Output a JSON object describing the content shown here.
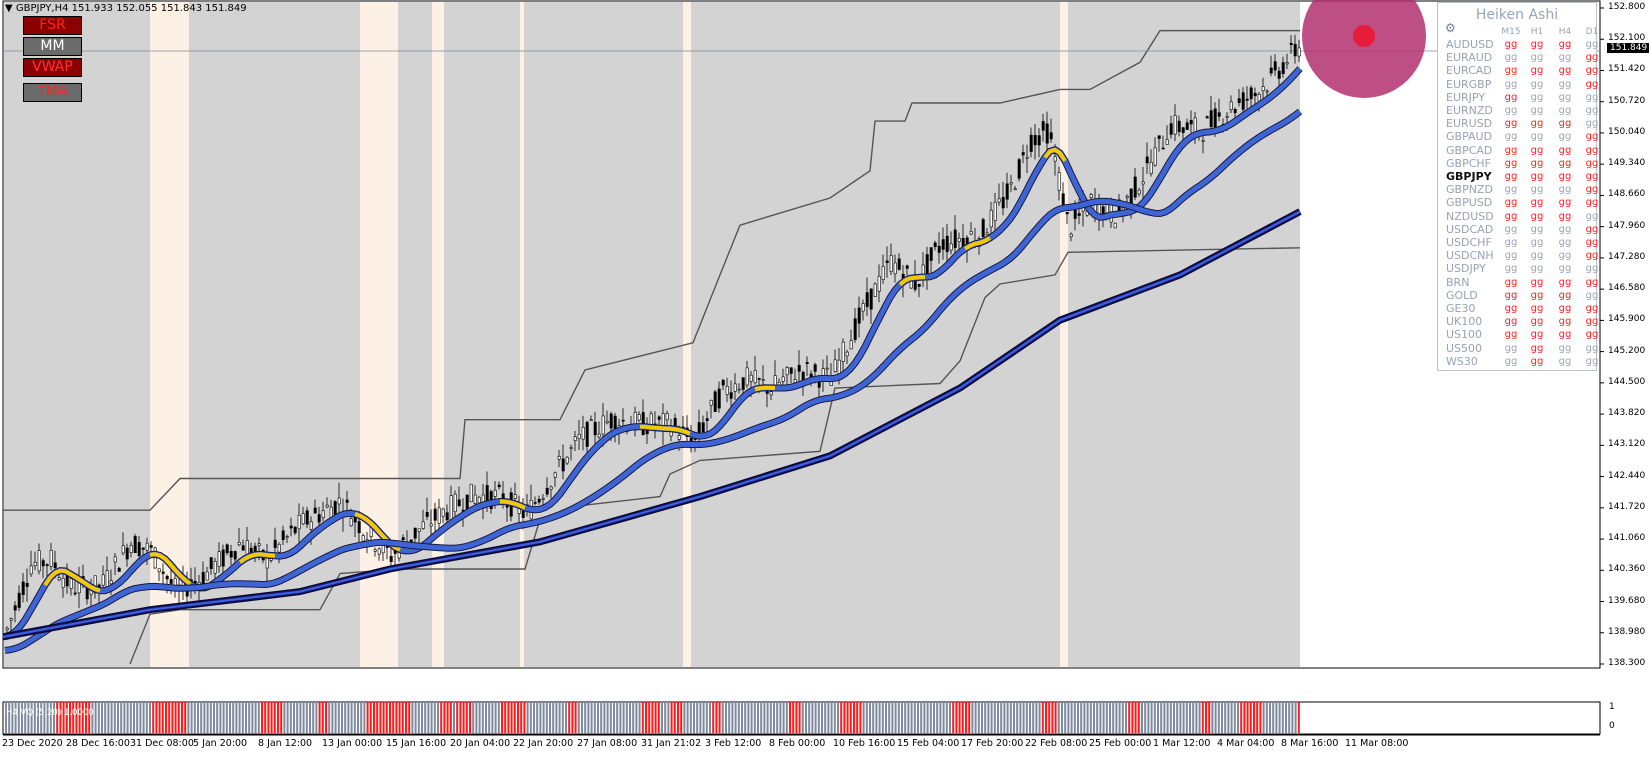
{
  "window": {
    "title": "GBPJPY,H4",
    "ohlc": "151.933 152.055 151.843 151.849"
  },
  "buttons": [
    {
      "label": "FSR",
      "bg": "#8b0000",
      "fg": "#ff2222"
    },
    {
      "label": "MM",
      "bg": "#6b6b6b",
      "fg": "#ffffff"
    },
    {
      "label": "VWAP",
      "bg": "#8b0000",
      "fg": "#ff3333"
    },
    {
      "label": "TMA",
      "bg": "#6b6b6b",
      "fg": "#ff2222"
    }
  ],
  "price_axis": {
    "labels": [
      "152.800",
      "152.100",
      "151.420",
      "150.720",
      "150.040",
      "149.340",
      "148.660",
      "147.960",
      "147.280",
      "146.580",
      "145.900",
      "145.200",
      "144.500",
      "143.820",
      "143.120",
      "142.440",
      "141.720",
      "141.060",
      "140.360",
      "139.680",
      "138.980",
      "138.300"
    ],
    "current_price": "151.849",
    "ylim": [
      138.3,
      152.8
    ]
  },
  "time_axis": {
    "labels": [
      "23 Dec 2020",
      "28 Dec 16:00",
      "31 Dec 08:00",
      "5 Jan 20:00",
      "8 Jan 12:00",
      "13 Jan 00:00",
      "15 Jan 16:00",
      "20 Jan 04:00",
      "22 Jan 20:00",
      "27 Jan 08:00",
      "31 Jan 21:02",
      "3 Feb 12:00",
      "8 Feb 00:00",
      "10 Feb 16:00",
      "15 Feb 04:00",
      "17 Feb 20:00",
      "22 Feb 08:00",
      "25 Feb 00:00",
      "1 Mar 12:00",
      "4 Mar 04:00",
      "8 Mar 16:00",
      "11 Mar 08:00"
    ]
  },
  "sub_window": {
    "label": "H4 VQ (5,20) 1.0000",
    "axis_top": "1",
    "axis_bottom": "0"
  },
  "heiken_panel": {
    "title": "Heiken Ashi",
    "icon": "gear-icon",
    "columns": [
      "M15",
      "H1",
      "H4",
      "D1"
    ],
    "selected": "GBPJPY",
    "rows": [
      {
        "symbol": "AUDUSD",
        "cells": [
          "r",
          "r",
          "r",
          "b"
        ]
      },
      {
        "symbol": "EURAUD",
        "cells": [
          "b",
          "b",
          "b",
          "r"
        ]
      },
      {
        "symbol": "EURCAD",
        "cells": [
          "r",
          "r",
          "r",
          "r"
        ]
      },
      {
        "symbol": "EURGBP",
        "cells": [
          "b",
          "b",
          "b",
          "r"
        ]
      },
      {
        "symbol": "EURJPY",
        "cells": [
          "r",
          "b",
          "b",
          "b"
        ]
      },
      {
        "symbol": "EURNZD",
        "cells": [
          "b",
          "b",
          "b",
          "b"
        ]
      },
      {
        "symbol": "EURUSD",
        "cells": [
          "r",
          "r",
          "r",
          "b"
        ]
      },
      {
        "symbol": "GBPAUD",
        "cells": [
          "b",
          "b",
          "b",
          "r"
        ]
      },
      {
        "symbol": "GBPCAD",
        "cells": [
          "r",
          "r",
          "r",
          "r"
        ]
      },
      {
        "symbol": "GBPCHF",
        "cells": [
          "r",
          "r",
          "r",
          "r"
        ]
      },
      {
        "symbol": "GBPJPY",
        "cells": [
          "r",
          "r",
          "r",
          "r"
        ]
      },
      {
        "symbol": "GBPNZD",
        "cells": [
          "b",
          "b",
          "b",
          "r"
        ]
      },
      {
        "symbol": "GBPUSD",
        "cells": [
          "r",
          "r",
          "r",
          "r"
        ]
      },
      {
        "symbol": "NZDUSD",
        "cells": [
          "r",
          "r",
          "r",
          "b"
        ]
      },
      {
        "symbol": "USDCAD",
        "cells": [
          "b",
          "b",
          "b",
          "r"
        ]
      },
      {
        "symbol": "USDCHF",
        "cells": [
          "b",
          "b",
          "b",
          "r"
        ]
      },
      {
        "symbol": "USDCNH",
        "cells": [
          "b",
          "b",
          "b",
          "r"
        ]
      },
      {
        "symbol": "USDJPY",
        "cells": [
          "b",
          "b",
          "b",
          "b"
        ]
      },
      {
        "symbol": "BRN",
        "cells": [
          "r",
          "r",
          "r",
          "r"
        ]
      },
      {
        "symbol": "GOLD",
        "cells": [
          "r",
          "r",
          "r",
          "b"
        ]
      },
      {
        "symbol": "GE30",
        "cells": [
          "r",
          "r",
          "r",
          "r"
        ]
      },
      {
        "symbol": "UK100",
        "cells": [
          "r",
          "r",
          "r",
          "r"
        ]
      },
      {
        "symbol": "US100",
        "cells": [
          "r",
          "r",
          "r",
          "r"
        ]
      },
      {
        "symbol": "US500",
        "cells": [
          "b",
          "r",
          "b",
          "b"
        ]
      },
      {
        "symbol": "WS30",
        "cells": [
          "b",
          "r",
          "b",
          "b"
        ]
      }
    ],
    "cell_glyph": "gg",
    "colors": {
      "r": "#ff2020",
      "b": "#9aa4b4"
    }
  },
  "colors": {
    "background": "#d3d3d3",
    "session_band": "#fdf1e6",
    "ma_fast": "#3e65d6",
    "ma_highlight": "#f5c800",
    "ma_slow": "#1a1a8a",
    "step_line": "#555555",
    "vq_up": "#ff1a1a",
    "vq_down": "#7f8aa0",
    "marker_circle": "#b2306e",
    "marker_dot": "#e81c3a"
  }
}
